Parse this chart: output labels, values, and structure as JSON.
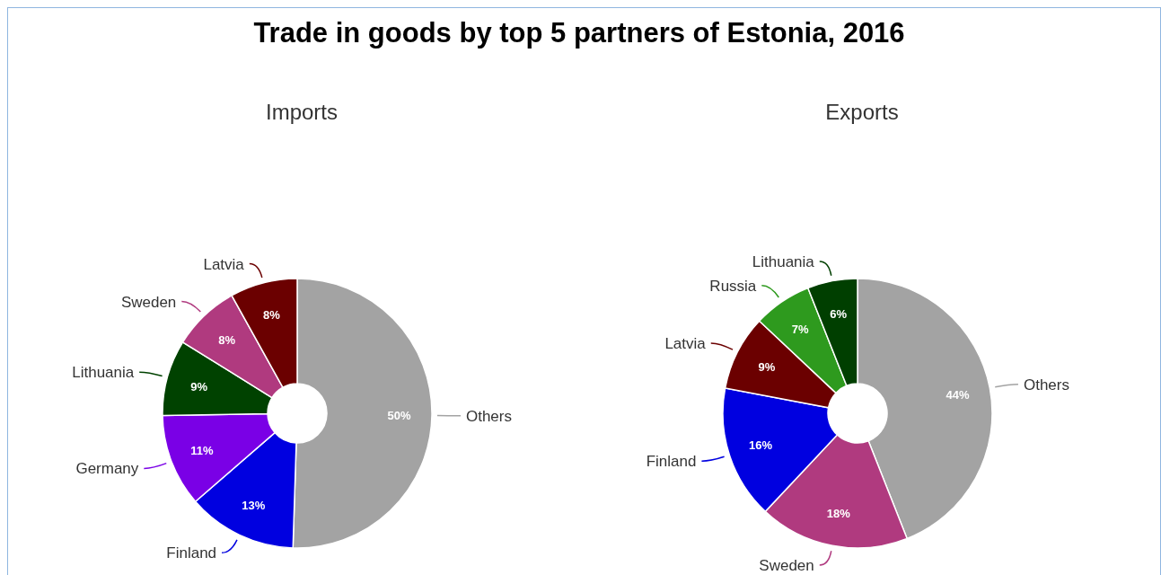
{
  "chart_data": [
    {
      "type": "donut",
      "title": "Trade in goods by top 5 partners of Estonia, 2016",
      "subtitle": "Imports",
      "categories": [
        "Others",
        "Finland",
        "Germany",
        "Lithuania",
        "Sweden",
        "Latvia"
      ],
      "values": [
        50,
        13,
        11,
        9,
        8,
        8
      ],
      "value_labels": [
        "50%",
        "13%",
        "11%",
        "9%",
        "8%",
        "8%"
      ],
      "colors": [
        "#a3a3a3",
        "#0000e0",
        "#7a00e6",
        "#004200",
        "#b03a7f",
        "#6b0000"
      ]
    },
    {
      "type": "donut",
      "subtitle": "Exports",
      "categories": [
        "Others",
        "Sweden",
        "Finland",
        "Latvia",
        "Russia",
        "Lithuania"
      ],
      "values": [
        44,
        18,
        16,
        9,
        7,
        6
      ],
      "value_labels": [
        "44%",
        "18%",
        "16%",
        "9%",
        "7%",
        "6%"
      ],
      "colors": [
        "#a3a3a3",
        "#b03a7f",
        "#0000e0",
        "#6b0000",
        "#2e9a1e",
        "#003f00"
      ]
    }
  ]
}
